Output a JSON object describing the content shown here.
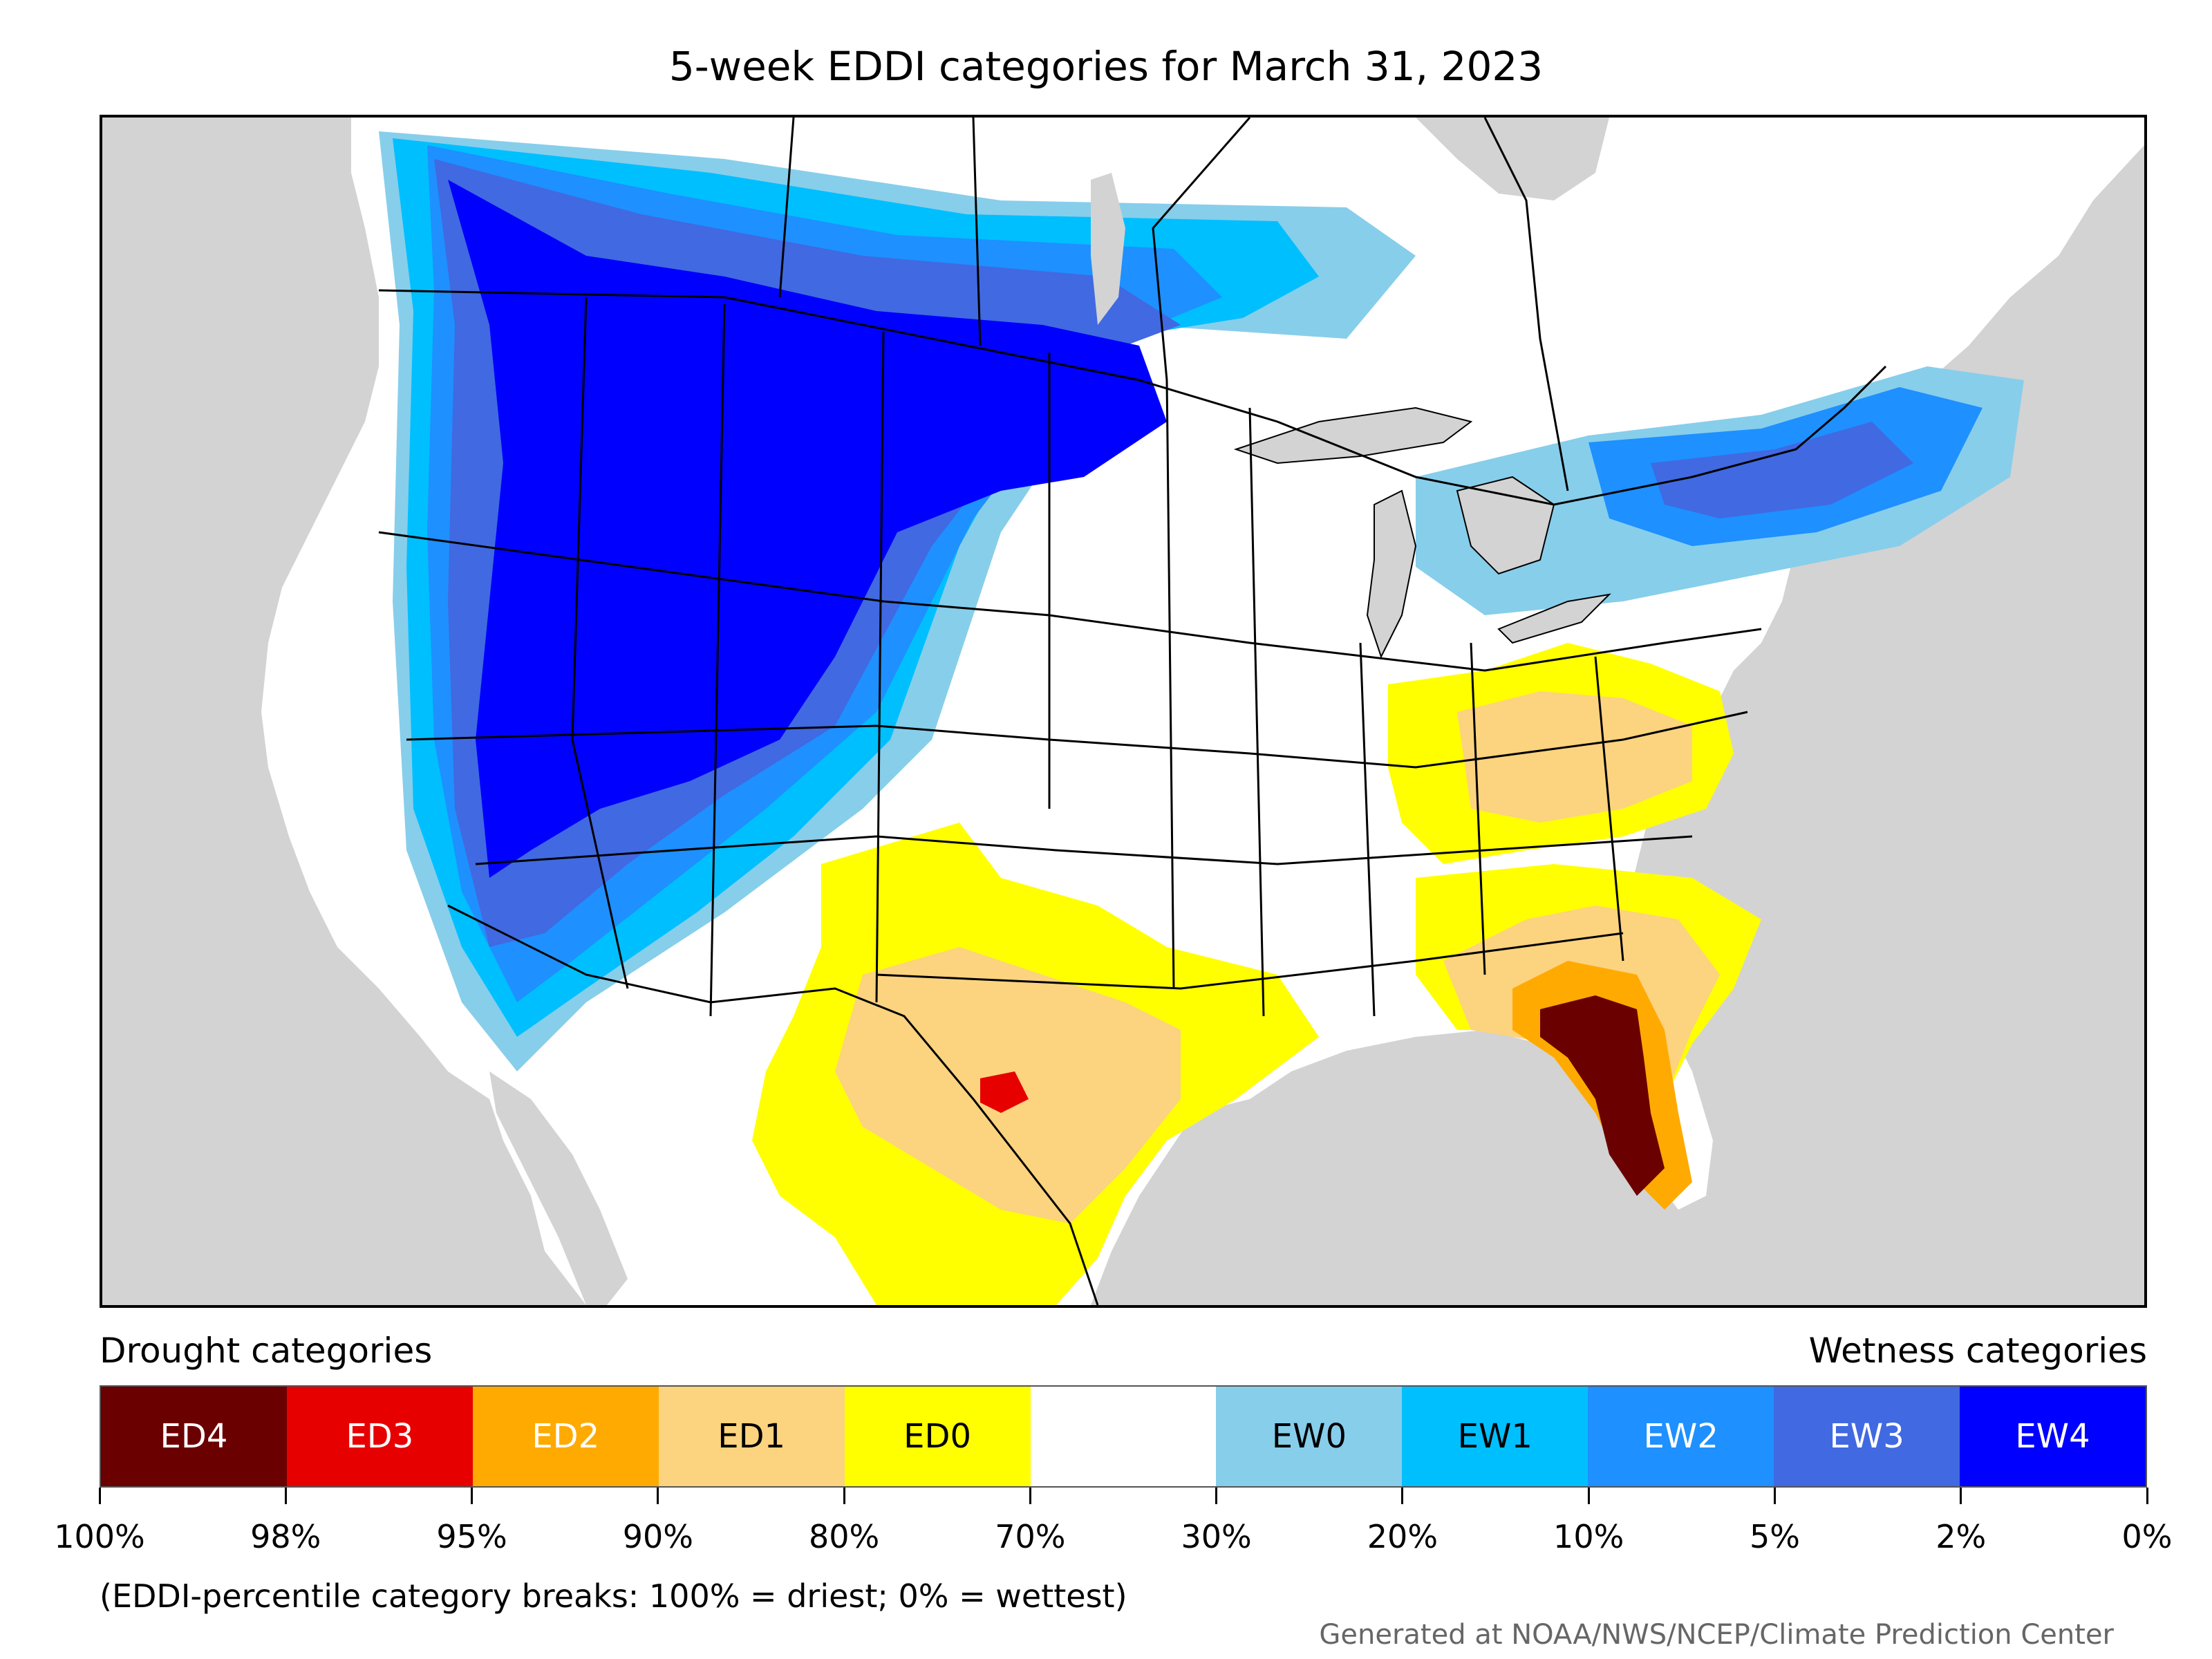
{
  "title": "5-week EDDI categories for March 31, 2023",
  "legend": {
    "left_heading": "Drought categories",
    "right_heading": "Wetness categories",
    "categories": [
      {
        "label": "ED4",
        "color": "#6b0000",
        "text_color": "#ffffff"
      },
      {
        "label": "ED3",
        "color": "#e60000",
        "text_color": "#ffffff"
      },
      {
        "label": "ED2",
        "color": "#ffaa00",
        "text_color": "#ffffff"
      },
      {
        "label": "ED1",
        "color": "#fcd37f",
        "text_color": "#000000"
      },
      {
        "label": "ED0",
        "color": "#ffff00",
        "text_color": "#000000"
      },
      {
        "label": "",
        "color": "#ffffff",
        "text_color": "#000000"
      },
      {
        "label": "EW0",
        "color": "#87ceeb",
        "text_color": "#000000"
      },
      {
        "label": "EW1",
        "color": "#00bfff",
        "text_color": "#000000"
      },
      {
        "label": "EW2",
        "color": "#1e90ff",
        "text_color": "#ffffff"
      },
      {
        "label": "EW3",
        "color": "#4169e1",
        "text_color": "#ffffff"
      },
      {
        "label": "EW4",
        "color": "#0000ff",
        "text_color": "#ffffff"
      }
    ],
    "breaks": [
      "100%",
      "98%",
      "95%",
      "90%",
      "80%",
      "70%",
      "30%",
      "20%",
      "10%",
      "5%",
      "2%",
      "0%"
    ],
    "note": "(EDDI-percentile category breaks: 100% = driest; 0% = wettest)"
  },
  "credit": "Generated at NOAA/NWS/NCEP/Climate Prediction Center",
  "map": {
    "ocean_color": "#d3d3d3",
    "land_color": "#ffffff",
    "border_color": "#000000"
  }
}
